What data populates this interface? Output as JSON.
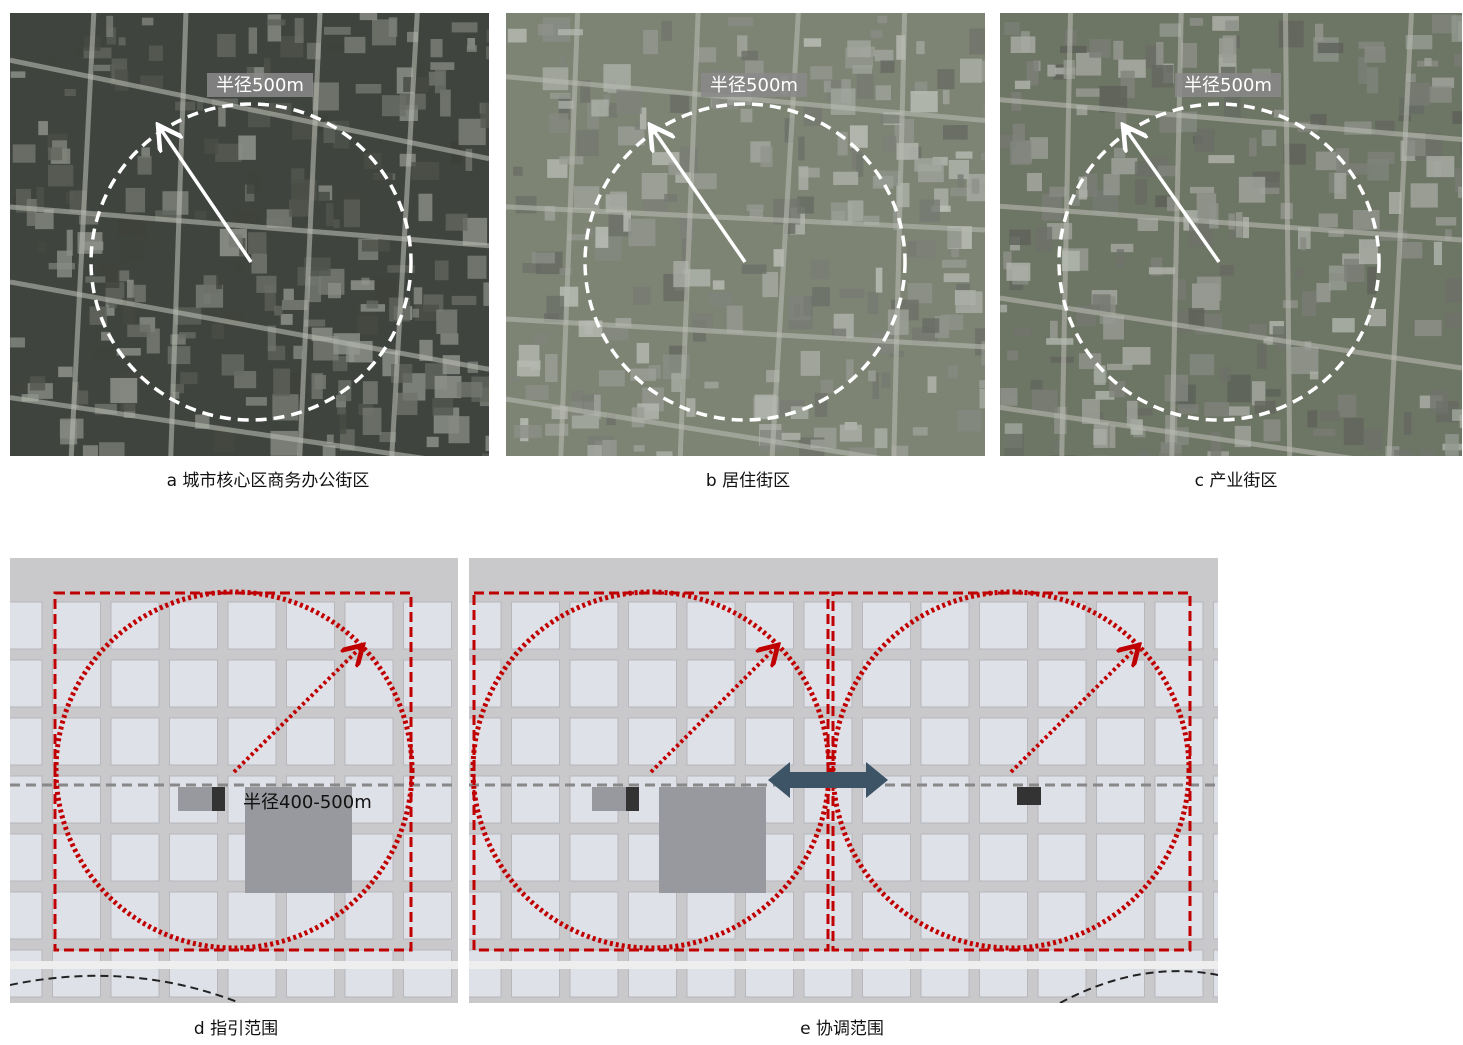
{
  "panels": [
    {
      "label": "半径500m",
      "caption": "a 城市核心区商务办公街区"
    },
    {
      "label": "半径500m",
      "caption": "b 居住街区"
    },
    {
      "label": "半径500m",
      "caption": "c 产业街区"
    }
  ],
  "diagrams": [
    {
      "caption": "d 指引范围",
      "label": "半径400-500m"
    },
    {
      "caption": "e 协调范围"
    }
  ]
}
